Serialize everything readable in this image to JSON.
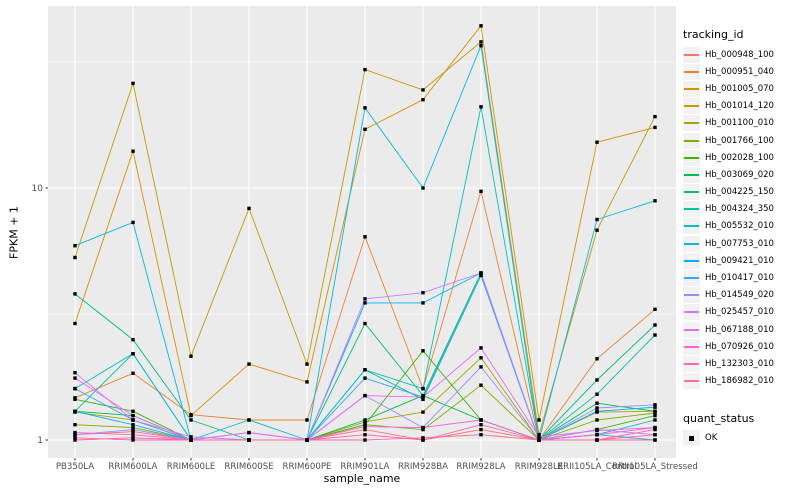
{
  "colors": {
    "panel_bg": "#EBEBEB",
    "grid": "#FFFFFF",
    "marker": "#000000",
    "tick_text": "#4D4D4D",
    "title_text": "#000000",
    "legend_key_bg": "#F2F2F2"
  },
  "axes": {
    "x_title": "sample_name",
    "y_title": "FPKM + 1",
    "y_ticks": [
      {
        "label": "1",
        "value": 1
      },
      {
        "label": "10",
        "value": 10
      }
    ]
  },
  "legend": {
    "tracking_title": "tracking_id",
    "quant_title": "quant_status",
    "quant_items": [
      {
        "label": "OK"
      }
    ]
  },
  "chart_data": {
    "type": "line",
    "title": "",
    "xlabel": "sample_name",
    "ylabel": "FPKM + 1",
    "y_scale": {
      "type": "log10",
      "breaks": [
        1,
        10
      ],
      "minor_breaks": [
        3.1623,
        31.623
      ],
      "range_shown": [
        0.93,
        52
      ]
    },
    "grid": "on",
    "legend_position": "right",
    "point_shape": "filled-square",
    "quant_status": "OK",
    "categories": [
      "PB350LA",
      "RRIM600LA",
      "RRIM600LE",
      "RRIM600SE",
      "RRIM600PE",
      "RRIM901LA",
      "RRIM928BA",
      "RRIM928LA",
      "RRIM928LE",
      "RRII105LA_Control",
      "RRII105LA_Stressed"
    ],
    "series": [
      {
        "name": "Hb_000948_100",
        "color": "#F8766D",
        "values": [
          1.05,
          1.08,
          1.0,
          1.0,
          1.0,
          1.1,
          1.0,
          1.1,
          1.0,
          1.0,
          1.05
        ]
      },
      {
        "name": "Hb_000951_040",
        "color": "#EA8331",
        "values": [
          1.47,
          1.84,
          1.26,
          1.2,
          1.2,
          6.4,
          1.6,
          9.7,
          1.0,
          2.1,
          3.3
        ]
      },
      {
        "name": "Hb_001005_070",
        "color": "#D89000",
        "values": [
          2.9,
          14.0,
          1.25,
          2.0,
          1.7,
          17.1,
          22.4,
          44.0,
          1.2,
          15.2,
          17.4
        ]
      },
      {
        "name": "Hb_001014_120",
        "color": "#C09B00",
        "values": [
          5.3,
          26.0,
          2.15,
          8.3,
          2.0,
          29.5,
          24.5,
          38.0,
          1.05,
          6.8,
          19.2
        ]
      },
      {
        "name": "Hb_001100_010",
        "color": "#A3A500",
        "values": [
          1.29,
          1.2,
          1.0,
          1.0,
          1.0,
          1.18,
          1.29,
          2.12,
          1.0,
          1.29,
          1.3
        ]
      },
      {
        "name": "Hb_001766_100",
        "color": "#7CAE00",
        "values": [
          1.15,
          1.12,
          1.0,
          1.0,
          1.0,
          1.15,
          1.1,
          1.65,
          1.0,
          1.2,
          1.28
        ]
      },
      {
        "name": "Hb_002028_100",
        "color": "#39B600",
        "values": [
          1.45,
          1.3,
          1.0,
          1.0,
          1.0,
          1.15,
          2.26,
          1.2,
          1.0,
          1.1,
          1.25
        ]
      },
      {
        "name": "Hb_003069_020",
        "color": "#00BB4E",
        "values": [
          1.3,
          1.25,
          1.0,
          1.0,
          1.0,
          1.2,
          1.5,
          1.2,
          1.0,
          1.4,
          1.3
        ]
      },
      {
        "name": "Hb_004225_150",
        "color": "#00BF7D",
        "values": [
          3.8,
          2.5,
          1.2,
          1.0,
          1.0,
          2.9,
          1.5,
          4.6,
          1.0,
          1.73,
          2.86
        ]
      },
      {
        "name": "Hb_004324_350",
        "color": "#00C1A3",
        "values": [
          1.3,
          2.2,
          1.0,
          1.0,
          1.0,
          1.9,
          1.45,
          4.5,
          1.0,
          1.52,
          2.61
        ]
      },
      {
        "name": "Hb_005532_010",
        "color": "#00BFC4",
        "values": [
          1.6,
          2.2,
          1.0,
          1.0,
          1.0,
          1.9,
          1.6,
          21.0,
          1.0,
          1.05,
          1.2
        ]
      },
      {
        "name": "Hb_007753_010",
        "color": "#00BAE0",
        "values": [
          5.9,
          7.3,
          1.0,
          1.2,
          1.0,
          20.8,
          10.0,
          36.7,
          1.0,
          7.5,
          8.9
        ]
      },
      {
        "name": "Hb_009421_010",
        "color": "#00B0F6",
        "values": [
          1.3,
          1.15,
          1.0,
          1.0,
          1.0,
          3.5,
          3.5,
          4.6,
          1.0,
          1.3,
          1.35
        ]
      },
      {
        "name": "Hb_010417_010",
        "color": "#35A2FF",
        "values": [
          1.6,
          1.2,
          1.0,
          1.0,
          1.0,
          1.76,
          1.48,
          4.5,
          1.0,
          1.05,
          1.0
        ]
      },
      {
        "name": "Hb_014549_020",
        "color": "#9590FF",
        "values": [
          1.05,
          1.1,
          1.0,
          1.07,
          1.0,
          1.5,
          1.12,
          1.95,
          1.0,
          1.34,
          1.38
        ]
      },
      {
        "name": "Hb_025457_010",
        "color": "#C77CFF",
        "values": [
          1.85,
          1.2,
          1.03,
          1.0,
          1.0,
          3.63,
          3.84,
          4.6,
          1.0,
          1.1,
          1.05
        ]
      },
      {
        "name": "Hb_067188_010",
        "color": "#E76BF3",
        "values": [
          1.76,
          1.25,
          1.0,
          1.07,
          1.0,
          1.5,
          1.48,
          2.32,
          1.03,
          1.09,
          1.12
        ]
      },
      {
        "name": "Hb_070926_010",
        "color": "#FA62DB",
        "values": [
          1.07,
          1.05,
          1.0,
          1.0,
          1.0,
          1.13,
          1.12,
          1.2,
          1.0,
          1.05,
          1.12
        ]
      },
      {
        "name": "Hb_132303_010",
        "color": "#FF62BC",
        "values": [
          1.02,
          1.0,
          1.0,
          1.0,
          1.0,
          1.05,
          1.0,
          1.15,
          1.0,
          1.0,
          1.1
        ]
      },
      {
        "name": "Hb_186982_010",
        "color": "#FF6A98",
        "values": [
          1.0,
          1.02,
          1.0,
          1.0,
          1.0,
          1.0,
          1.02,
          1.05,
          1.0,
          1.0,
          1.0
        ]
      }
    ]
  }
}
